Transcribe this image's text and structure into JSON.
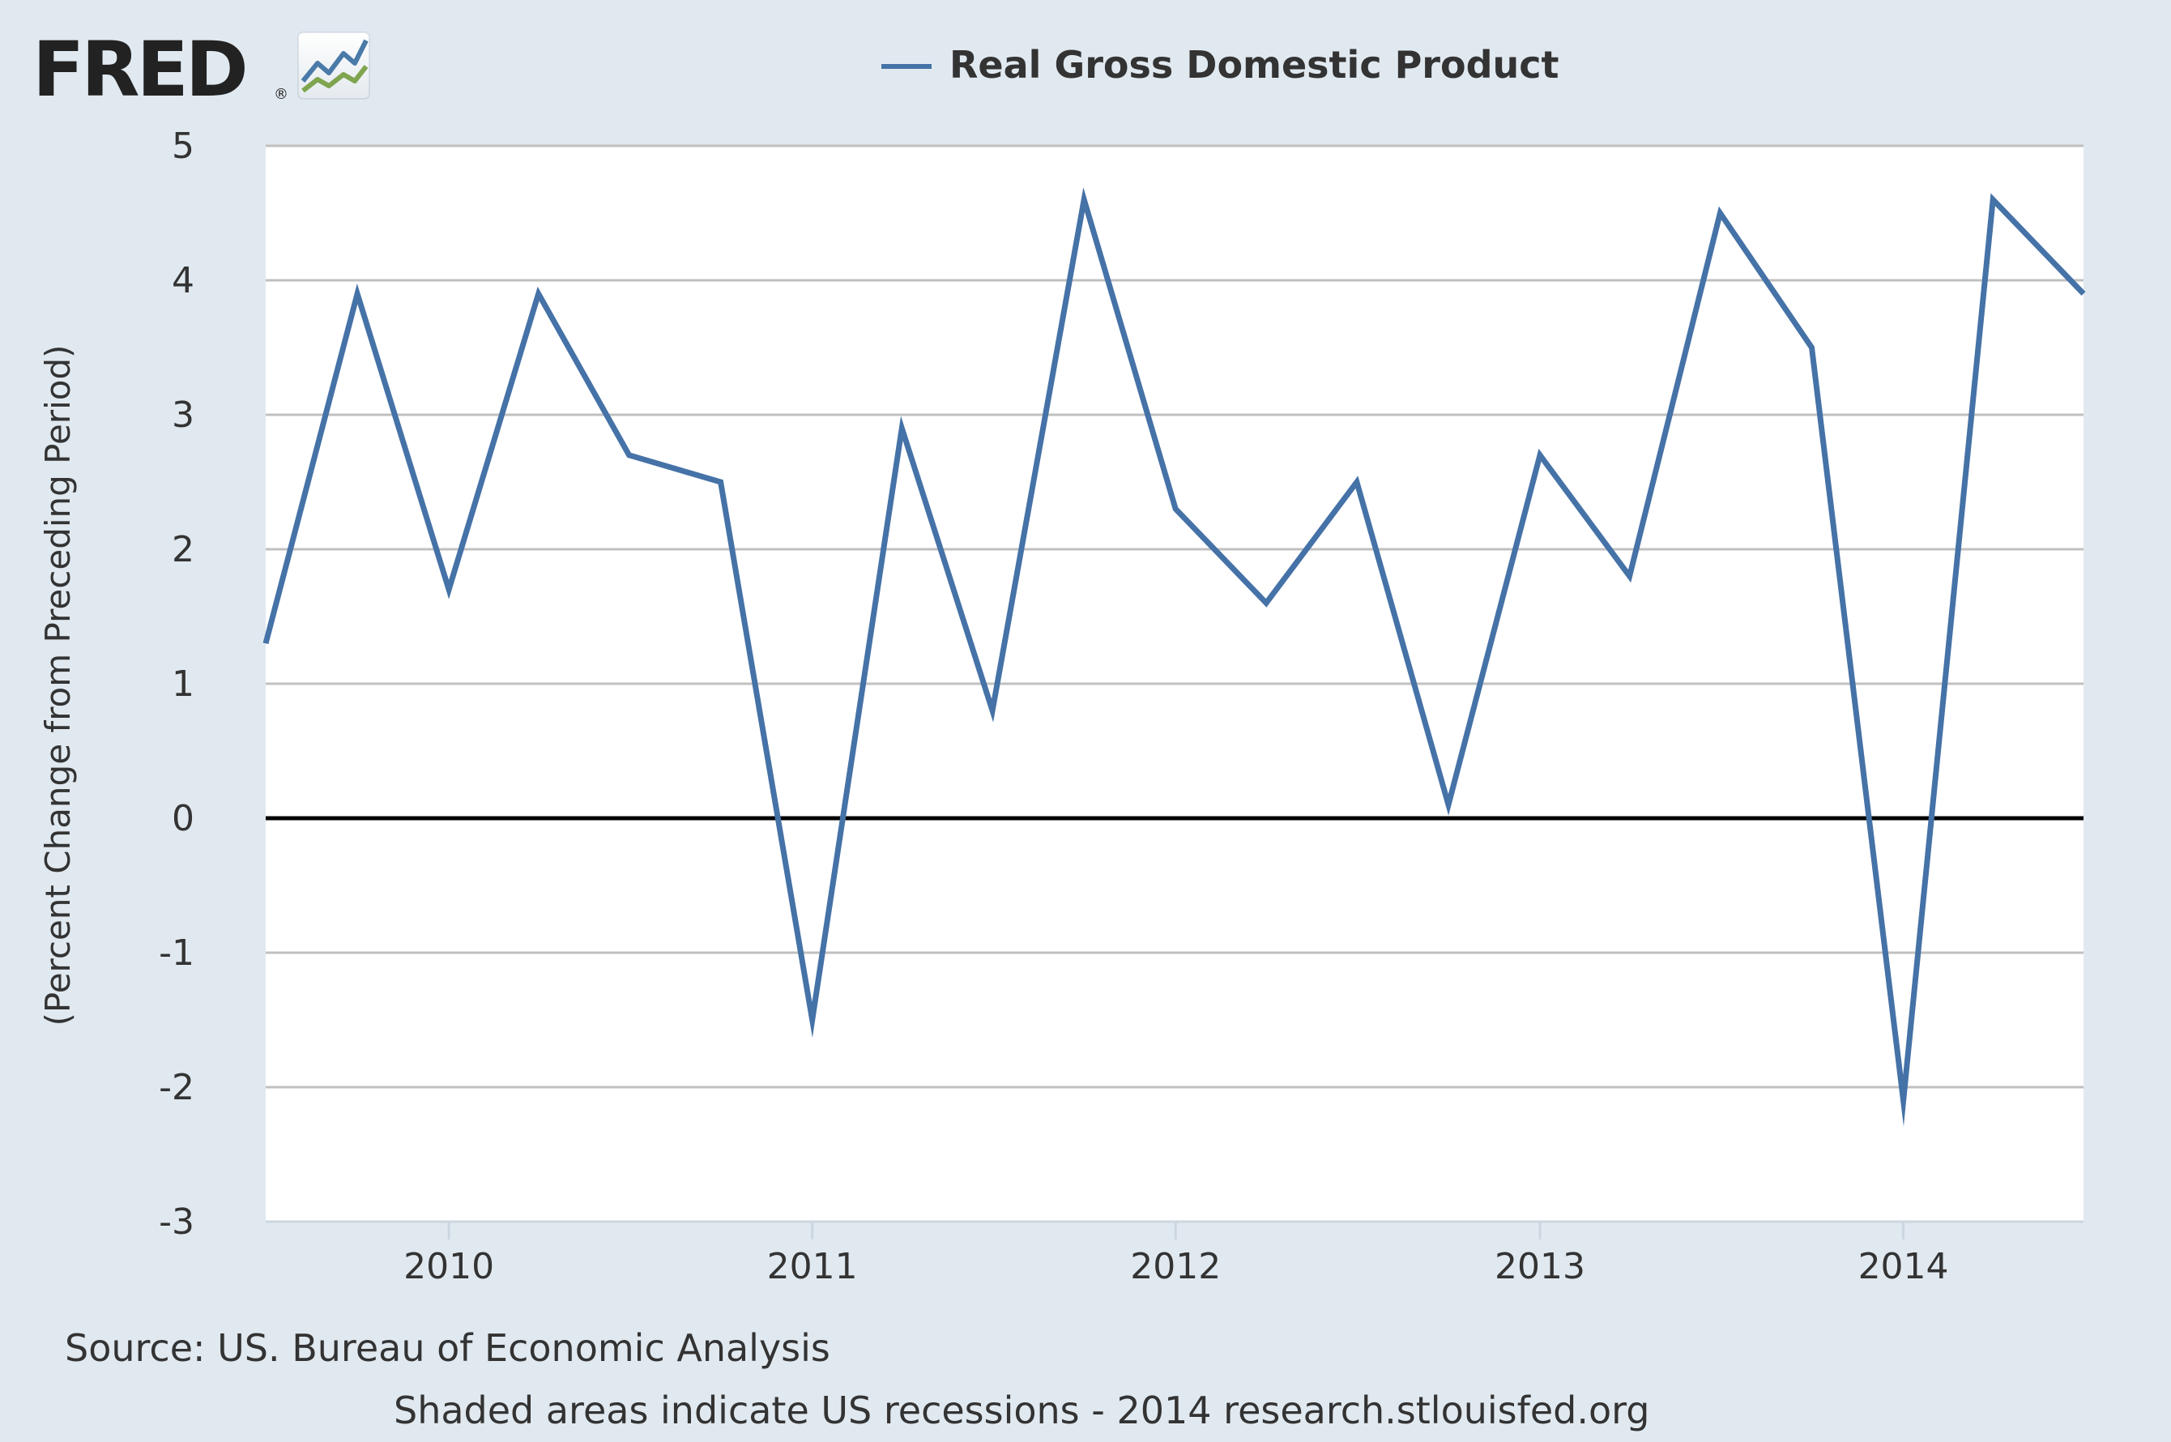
{
  "brand": {
    "logo_text": "FRED",
    "registered_mark": "®",
    "logo_icon": "line-chart-icon"
  },
  "colors": {
    "background": "#e1e9f0",
    "plot_background": "#ffffff",
    "series": "#4572a7",
    "zero_line": "#000000",
    "grid": "#c0c0c0",
    "logo_icon_blue": "#4a7aa8",
    "logo_icon_green": "#7fa54f"
  },
  "footer": {
    "source": "Source: US. Bureau of Economic Analysis",
    "note": "Shaded areas indicate US recessions - 2014 research.stlouisfed.org"
  },
  "chart_data": {
    "type": "line",
    "title": "",
    "legend_position": "top-center",
    "xlabel": "",
    "ylabel": "(Percent Change from Preceding Period)",
    "ylim": [
      -3,
      5
    ],
    "yticks": [
      -3,
      -2,
      -1,
      0,
      1,
      2,
      3,
      4,
      5
    ],
    "xlim": [
      "2009-07-01",
      "2014-07-01"
    ],
    "xticks": [
      "2010",
      "2011",
      "2012",
      "2013",
      "2014"
    ],
    "grid": true,
    "zero_line": true,
    "series": [
      {
        "name": "Real Gross Domestic Product",
        "x": [
          "2009-07-01",
          "2009-10-01",
          "2010-01-01",
          "2010-04-01",
          "2010-07-01",
          "2010-10-01",
          "2011-01-01",
          "2011-04-01",
          "2011-07-01",
          "2011-10-01",
          "2012-01-01",
          "2012-04-01",
          "2012-07-01",
          "2012-10-01",
          "2013-01-01",
          "2013-04-01",
          "2013-07-01",
          "2013-10-01",
          "2014-01-01",
          "2014-04-01",
          "2014-07-01"
        ],
        "y": [
          1.3,
          3.9,
          1.7,
          3.9,
          2.7,
          2.5,
          -1.5,
          2.9,
          0.8,
          4.6,
          2.3,
          1.6,
          2.5,
          0.1,
          2.7,
          1.8,
          4.5,
          3.5,
          -2.1,
          4.6,
          3.9
        ]
      }
    ]
  }
}
